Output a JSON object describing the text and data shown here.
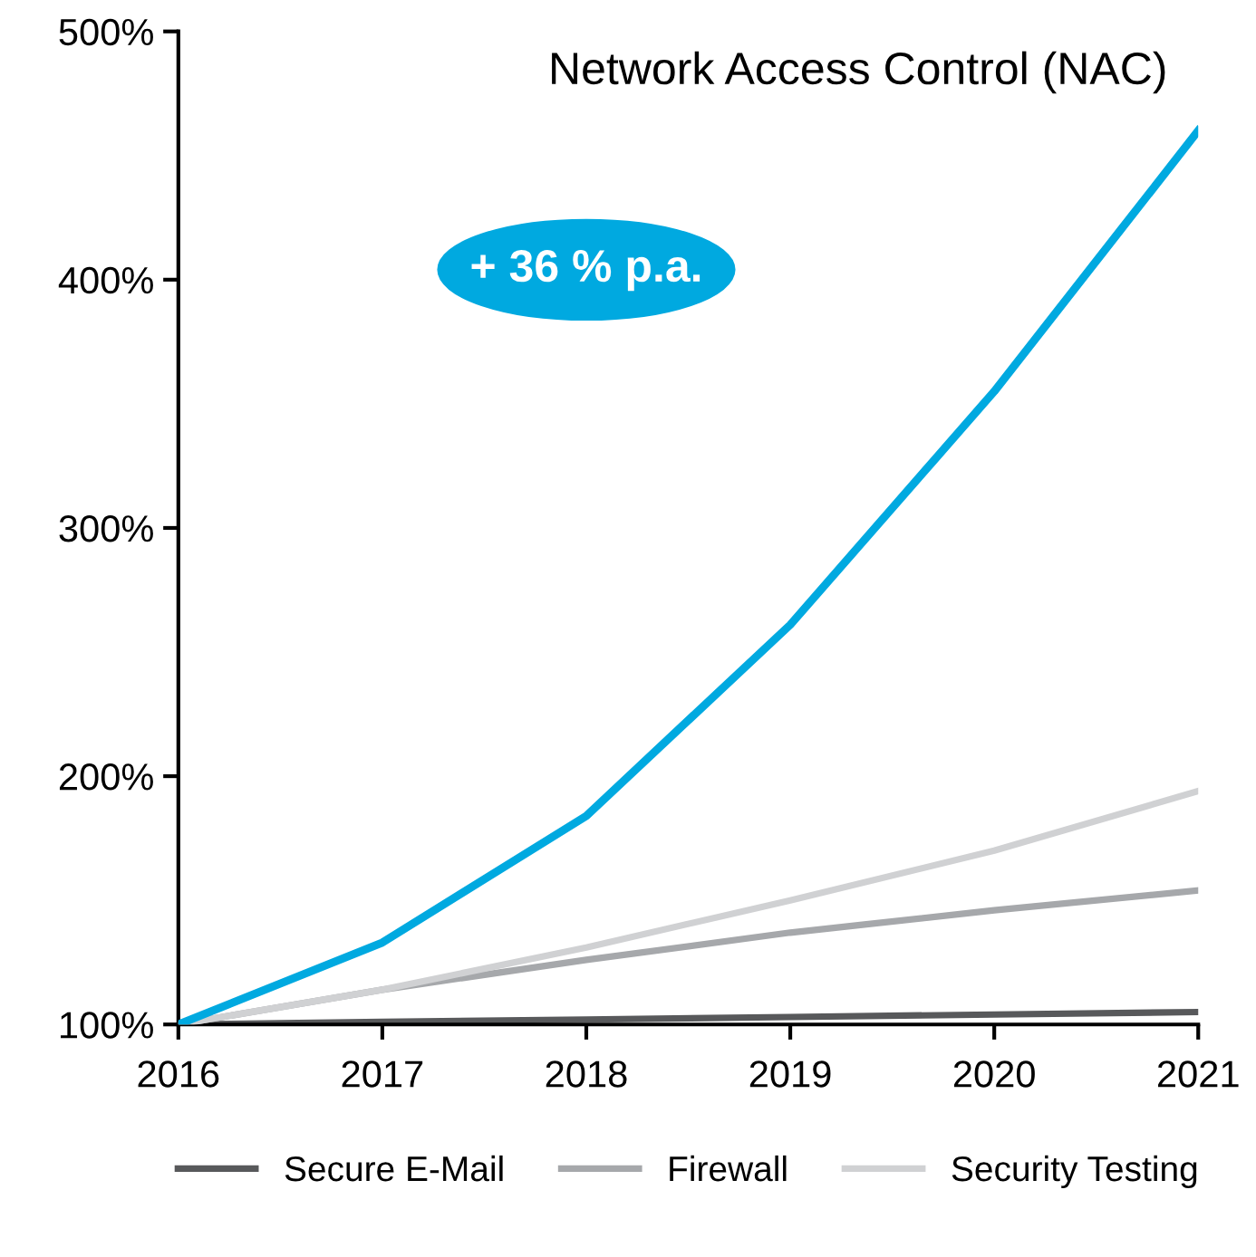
{
  "chart_data": {
    "type": "line",
    "x": [
      2016,
      2017,
      2018,
      2019,
      2020,
      2021
    ],
    "series": [
      {
        "name": "Secure E-Mail",
        "color": "#58595b",
        "values": [
          100,
          101,
          102,
          103,
          104,
          105
        ]
      },
      {
        "name": "Firewall",
        "color": "#a6a8ab",
        "values": [
          100,
          114,
          126,
          137,
          146,
          154
        ]
      },
      {
        "name": "Security Testing",
        "color": "#d0d1d3",
        "values": [
          100,
          114,
          131,
          150,
          170,
          194
        ]
      },
      {
        "name": "Network Access Control (NAC)",
        "color": "#00a9e0",
        "values": [
          100,
          133,
          184,
          261,
          355,
          460
        ]
      }
    ],
    "annotations": [
      "+ 36 % p.a."
    ],
    "xlim": [
      2016,
      2021
    ],
    "xticks": [
      2016,
      2017,
      2018,
      2019,
      2020,
      2021
    ],
    "ylim": [
      100,
      500
    ],
    "yticks": [
      {
        "value": 100,
        "label": "100%"
      },
      {
        "value": 200,
        "label": "200%"
      },
      {
        "value": 300,
        "label": "300%"
      },
      {
        "value": 400,
        "label": "400%"
      },
      {
        "value": 500,
        "label": "500%"
      }
    ],
    "grid": false,
    "legend": "bottom",
    "marker": "none",
    "line_style": "solid"
  }
}
